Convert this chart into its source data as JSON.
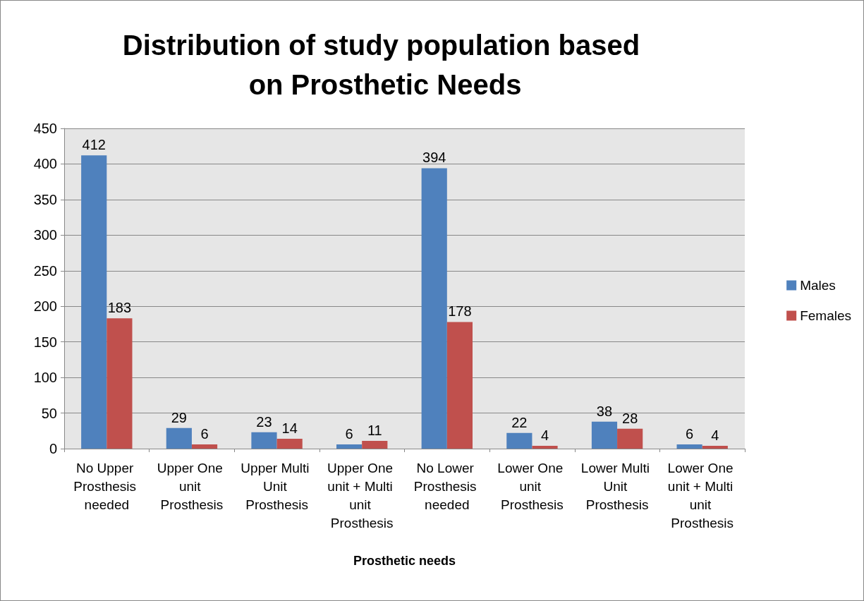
{
  "chart_data": {
    "type": "bar",
    "title": "Distribution of study population based on Prosthetic Needs",
    "xlabel": "Prosthetic needs",
    "categories": [
      "No Upper Prosthesis needed",
      "Upper One unit Prosthesis",
      "Upper Multi Unit Prosthesis",
      "Upper One unit + Multi unit Prosthesis",
      "No Lower Prosthesis needed",
      "Lower One unit Prosthesis",
      "Lower Multi Unit Prosthesis",
      "Lower One unit + Multi unit Prosthesis"
    ],
    "series": [
      {
        "name": "Males",
        "color": "#4f81bd",
        "values": [
          412,
          29,
          23,
          6,
          394,
          22,
          38,
          6
        ]
      },
      {
        "name": "Females",
        "color": "#c0504d",
        "values": [
          183,
          6,
          14,
          11,
          178,
          4,
          28,
          4
        ]
      }
    ],
    "ylim": [
      0,
      450
    ],
    "yticks": [
      0,
      50,
      100,
      150,
      200,
      250,
      300,
      350,
      400,
      450
    ],
    "grid": "y",
    "legend": "right",
    "data_labels": true
  }
}
